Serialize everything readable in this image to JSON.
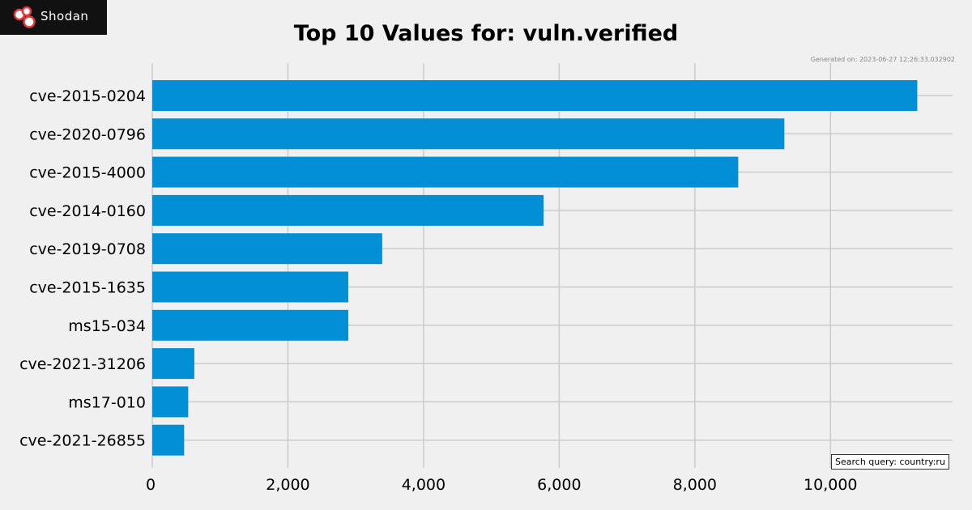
{
  "brand": {
    "logo_text": "Shodan",
    "background": "#111111"
  },
  "generated_text": "Generated on: 2023-06-27 12:26:33.032902",
  "search_query_text": "Search query: country:ru",
  "colors": {
    "bar": "#038fd6",
    "background": "#f0f0f0",
    "grid": "#cbcbcb"
  },
  "chart_data": {
    "type": "bar",
    "orientation": "horizontal",
    "title": "Top 10 Values for: vuln.verified",
    "xlabel": "",
    "ylabel": "",
    "categories": [
      "cve-2015-0204",
      "cve-2020-0796",
      "cve-2015-4000",
      "cve-2014-0160",
      "cve-2019-0708",
      "cve-2015-1635",
      "ms15-034",
      "cve-2021-31206",
      "ms17-010",
      "cve-2021-26855"
    ],
    "values": [
      11280,
      9320,
      8640,
      5770,
      3390,
      2890,
      2890,
      620,
      530,
      470
    ],
    "xlim": [
      0,
      11800
    ],
    "xticks": [
      0,
      2000,
      4000,
      6000,
      8000,
      10000
    ],
    "xtick_labels": [
      "0",
      "2,000",
      "4,000",
      "6,000",
      "8,000",
      "10,000"
    ],
    "grid": true,
    "legend": "none"
  }
}
